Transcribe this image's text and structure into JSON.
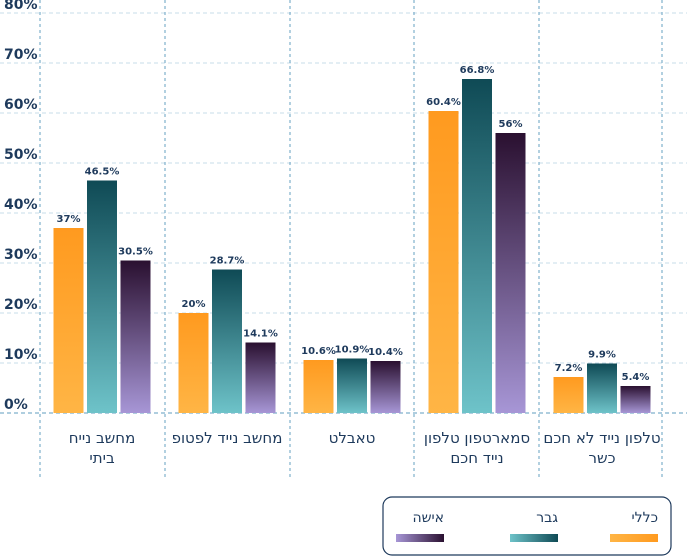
{
  "chart_data": {
    "type": "bar",
    "title": "",
    "xlabel": "",
    "ylabel": "",
    "ylim": [
      0,
      80
    ],
    "yticks": [
      "0%",
      "10%",
      "20%",
      "30%",
      "40%",
      "50%",
      "60%",
      "70%",
      "80%"
    ],
    "grid": true,
    "legend_position": "bottom-right",
    "categories": [
      [
        "מחשב נייח",
        "ביתי"
      ],
      [
        "מחשב נייד לפטופ"
      ],
      [
        "טאבלט"
      ],
      [
        "סמארטפון טלפון",
        "נייד חכם"
      ],
      [
        "טלפון נייד לא חכם",
        "כשר"
      ]
    ],
    "series": [
      {
        "name": "כללי",
        "values": [
          37,
          20,
          10.6,
          60.4,
          7.2
        ],
        "labels": [
          "37%",
          "20%",
          "10.6%",
          "60.4%",
          "7.2%"
        ],
        "color_top": "#ff9a1f",
        "color_bottom": "#ffb545"
      },
      {
        "name": "גבר",
        "values": [
          46.5,
          28.7,
          10.9,
          66.8,
          9.9
        ],
        "labels": [
          "46.5%",
          "28.7%",
          "10.9%",
          "66.8%",
          "9.9%"
        ],
        "color_top": "#0f4a55",
        "color_bottom": "#6ec3c9"
      },
      {
        "name": "אישה",
        "values": [
          30.5,
          14.1,
          10.4,
          56,
          5.4
        ],
        "labels": [
          "30.5%",
          "14.1%",
          "10.4%",
          "56%",
          "5.4%"
        ],
        "color_top": "#2a1030",
        "color_bottom": "#a796d6"
      }
    ],
    "colors": {
      "text": "#1e3a5c",
      "grid": "#c7dcea",
      "divider": "#7fb0cc"
    }
  }
}
